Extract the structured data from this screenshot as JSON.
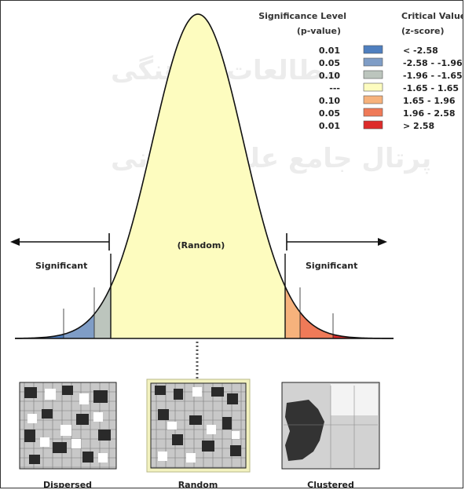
{
  "legend": {
    "pvalue_header_1": "Significance Level",
    "pvalue_header_2": "(p-value)",
    "zscore_header_1": "Critical Value",
    "zscore_header_2": "(z-score)",
    "rows": [
      {
        "p": "0.01",
        "z": "< -2.58",
        "color": "#4f7fbf"
      },
      {
        "p": "0.05",
        "z": "-2.58 - -1.96",
        "color": "#7f9dc6"
      },
      {
        "p": "0.10",
        "z": "-1.96 - -1.65",
        "color": "#bcc5bd"
      },
      {
        "p": "---",
        "z": "-1.65 - 1.65",
        "color": "#fdfcbf"
      },
      {
        "p": "0.10",
        "z": "1.65 - 1.96",
        "color": "#f6b27c"
      },
      {
        "p": "0.05",
        "z": "1.96 - 2.58",
        "color": "#ef7a58"
      },
      {
        "p": "0.01",
        "z": "> 2.58",
        "color": "#dd2b2a"
      }
    ]
  },
  "curve": {
    "random_label": "(Random)",
    "left_label": "Significant",
    "right_label": "Significant"
  },
  "patterns": [
    {
      "label": "Dispersed"
    },
    {
      "label": "Random"
    },
    {
      "label": "Clustered"
    }
  ],
  "watermark": [
    "مطالعات فرهنگی",
    "پرتال جامع علوم انسانی"
  ]
}
